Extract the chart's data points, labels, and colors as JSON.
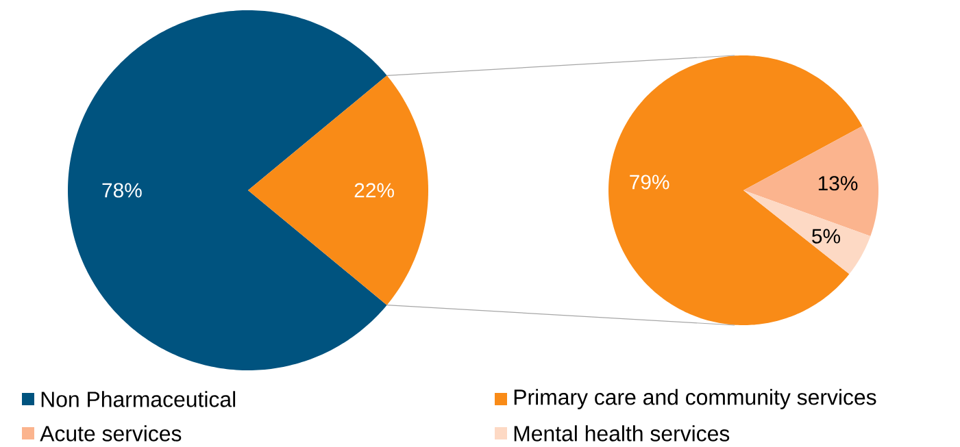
{
  "chart_data": [
    {
      "type": "pie",
      "categories": [
        "Non Pharmaceutical",
        null
      ],
      "values": [
        78,
        22
      ],
      "colors": [
        "#00537f",
        "#f98b17"
      ],
      "value_labels": [
        "78%",
        "22%"
      ],
      "legend": "bottom"
    },
    {
      "type": "pie",
      "categories": [
        "Primary care and community services",
        "Acute services",
        "Mental health services"
      ],
      "values": [
        79,
        13,
        5
      ],
      "colors": [
        "#f98b17",
        "#fbb48e",
        "#fdd9c4"
      ],
      "value_labels": [
        "79%",
        "13%",
        "5%"
      ],
      "legend": "bottom"
    }
  ]
}
